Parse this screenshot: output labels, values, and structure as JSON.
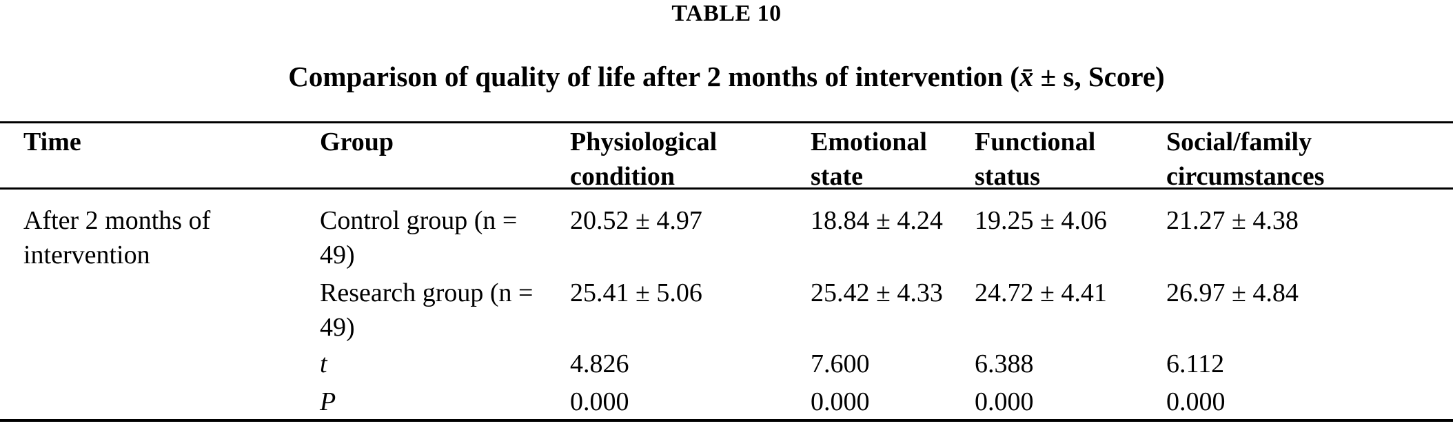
{
  "colors": {
    "background": "#ffffff",
    "text": "#000000",
    "rule": "#000000"
  },
  "table_label": "TABLE 10",
  "caption": {
    "prefix": "Comparison of quality of life after 2 months of intervention (",
    "xbar": "x̄",
    "suffix": " ± s, Score)"
  },
  "header": {
    "time": "Time",
    "group": "Group",
    "physiological": [
      "Physiological",
      "condition"
    ],
    "emotional": [
      "Emotional",
      "state"
    ],
    "functional": [
      "Functional",
      "status"
    ],
    "social": [
      "Social/family",
      "circumstances"
    ]
  },
  "rows": [
    {
      "time": [
        "After 2 months of",
        "intervention"
      ],
      "group": [
        "Control group (n =",
        "49)"
      ],
      "values": [
        "20.52 ± 4.97",
        "18.84 ± 4.24",
        "19.25 ± 4.06",
        "21.27 ± 4.38"
      ]
    },
    {
      "time": [
        "",
        ""
      ],
      "group": [
        "Research group (n =",
        "49)"
      ],
      "values": [
        "25.41 ± 5.06",
        "25.42 ± 4.33",
        "24.72 ± 4.41",
        "26.97 ± 4.84"
      ]
    },
    {
      "time": [
        ""
      ],
      "group": "t",
      "values": [
        "4.826",
        "7.600",
        "6.388",
        "6.112"
      ]
    },
    {
      "time": [
        ""
      ],
      "group": "P",
      "values": [
        "0.000",
        "0.000",
        "0.000",
        "0.000"
      ]
    }
  ]
}
